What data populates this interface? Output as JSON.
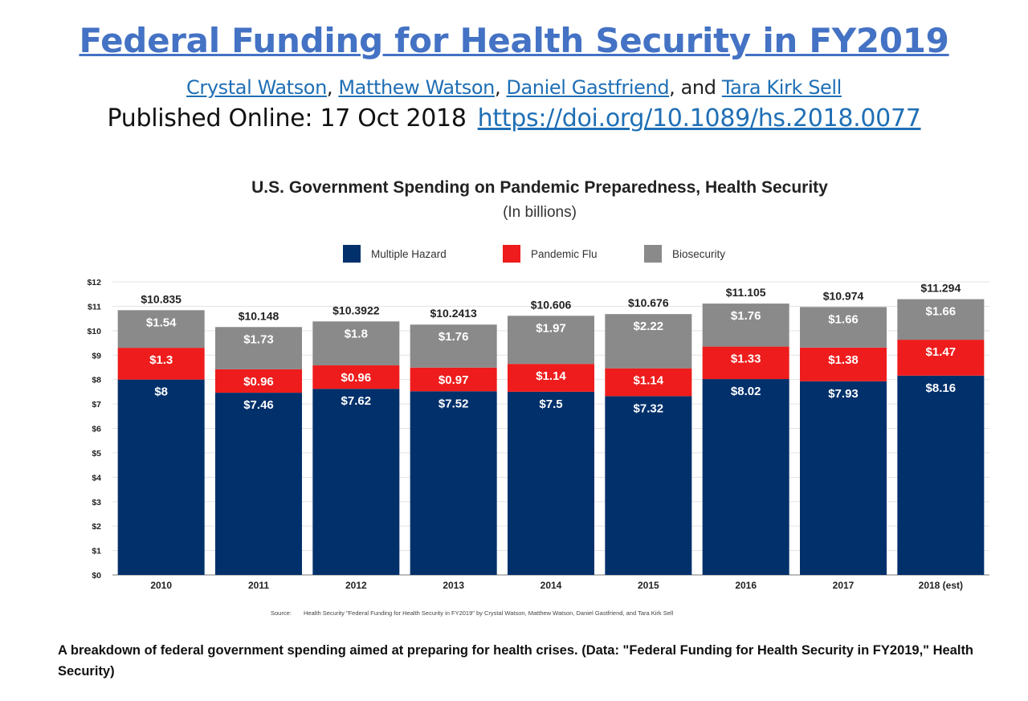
{
  "header": {
    "title": "Federal Funding for Health Security in FY2019",
    "authors": [
      {
        "name": "Crystal Watson",
        "sep": ", "
      },
      {
        "name": "Matthew Watson",
        "sep": ", "
      },
      {
        "name": "Daniel Gastfriend",
        "sep": ", and "
      },
      {
        "name": "Tara Kirk Sell",
        "sep": ""
      }
    ],
    "published_label": "Published Online: 17 Oct 2018",
    "doi_link": "https://doi.org/10.1089/hs.2018.0077"
  },
  "chart_data": {
    "type": "bar",
    "stacked": true,
    "title": "U.S. Government Spending on Pandemic Preparedness, Health Security",
    "subtitle": "(In billions)",
    "categories": [
      "2010",
      "2011",
      "2012",
      "2013",
      "2014",
      "2015",
      "2016",
      "2017",
      "2018 (est)"
    ],
    "series": [
      {
        "name": "Multiple Hazard",
        "color": "#02306b",
        "values": [
          8,
          7.46,
          7.62,
          7.52,
          7.5,
          7.32,
          8.02,
          7.93,
          8.16
        ],
        "labels": [
          "$8",
          "$7.46",
          "$7.62",
          "$7.52",
          "$7.5",
          "$7.32",
          "$8.02",
          "$7.93",
          "$8.16"
        ]
      },
      {
        "name": "Pandemic Flu",
        "color": "#ee1c1c",
        "values": [
          1.3,
          0.96,
          0.96,
          0.97,
          1.14,
          1.14,
          1.33,
          1.38,
          1.47
        ],
        "labels": [
          "$1.3",
          "$0.96",
          "$0.96",
          "$0.97",
          "$1.14",
          "$1.14",
          "$1.33",
          "$1.38",
          "$1.47"
        ]
      },
      {
        "name": "Biosecurity",
        "color": "#8a8a8a",
        "values": [
          1.54,
          1.73,
          1.8,
          1.76,
          1.97,
          2.22,
          1.76,
          1.66,
          1.66
        ],
        "labels": [
          "$1.54",
          "$1.73",
          "$1.8",
          "$1.76",
          "$1.97",
          "$2.22",
          "$1.76",
          "$1.66",
          "$1.66"
        ]
      }
    ],
    "totals": [
      10.835,
      10.148,
      10.3922,
      10.2413,
      10.606,
      10.676,
      11.105,
      10.974,
      11.294
    ],
    "total_labels": [
      "$10.835",
      "$10.148",
      "$10.3922",
      "$10.2413",
      "$10.606",
      "$10.676",
      "$11.105",
      "$10.974",
      "$11.294"
    ],
    "ylim": [
      0,
      12
    ],
    "yticks": [
      "$0",
      "$1",
      "$2",
      "$3",
      "$4",
      "$5",
      "$6",
      "$7",
      "$8",
      "$9",
      "$10",
      "$11",
      "$12"
    ],
    "xlabel": "",
    "ylabel": "",
    "legend_position": "top-center",
    "source_label": "Source:",
    "source_text": "Health Security \"Federal Funding for Health Security in FY2019\" by Crystal Watson, Matthew Watson, Daniel Gastfriend, and Tara Kirk Sell"
  },
  "caption": "A breakdown of federal government spending aimed at preparing for health crises. (Data: \"Federal Funding for Health Security in FY2019,\" Health Security)"
}
